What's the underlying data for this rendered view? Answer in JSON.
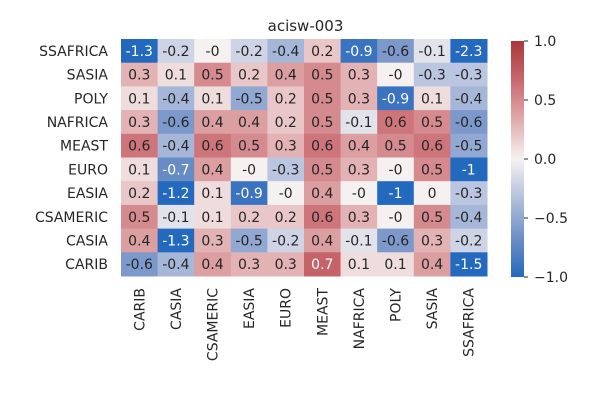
{
  "chart_data": {
    "type": "heatmap",
    "title": "acisw-003",
    "xlabel": "",
    "ylabel": "",
    "x_categories": [
      "CARIB",
      "CASIA",
      "CSAMERIC",
      "EASIA",
      "EURO",
      "MEAST",
      "NAFRICA",
      "POLY",
      "SASIA",
      "SSAFRICA"
    ],
    "y_categories": [
      "SSAFRICA",
      "SASIA",
      "POLY",
      "NAFRICA",
      "MEAST",
      "EURO",
      "EASIA",
      "CSAMERIC",
      "CASIA",
      "CARIB"
    ],
    "values": [
      [
        -1.3,
        -0.2,
        0,
        -0.2,
        -0.4,
        0.2,
        -0.9,
        -0.6,
        -0.1,
        -2.3
      ],
      [
        0.3,
        0.1,
        0.5,
        0.2,
        0.4,
        0.5,
        0.3,
        0,
        -0.3,
        -0.3
      ],
      [
        0.1,
        -0.4,
        0.1,
        -0.5,
        0.2,
        0.5,
        0.3,
        -0.9,
        0.1,
        -0.4
      ],
      [
        0.3,
        -0.6,
        0.4,
        0.4,
        0.2,
        0.5,
        -0.1,
        0.6,
        0.5,
        -0.6
      ],
      [
        0.6,
        -0.4,
        0.6,
        0.5,
        0.3,
        0.6,
        0.4,
        0.5,
        0.6,
        -0.5
      ],
      [
        0.1,
        -0.7,
        0.4,
        0,
        -0.3,
        0.5,
        0.3,
        0,
        0.5,
        -1
      ],
      [
        0.2,
        -1.2,
        0.1,
        -0.9,
        0,
        0.4,
        0,
        -1,
        0,
        -0.3
      ],
      [
        0.5,
        -0.1,
        0.1,
        0.2,
        0.2,
        0.6,
        0.3,
        0,
        0.5,
        -0.4
      ],
      [
        0.4,
        -1.3,
        0.3,
        -0.5,
        -0.2,
        0.4,
        -0.1,
        -0.6,
        0.3,
        -0.2
      ],
      [
        -0.6,
        -0.4,
        0.4,
        0.3,
        0.3,
        0.7,
        0.1,
        0.1,
        0.4,
        -1.5
      ]
    ],
    "cell_labels": [
      [
        "-1.3",
        "-0.2",
        "-0",
        "-0.2",
        "-0.4",
        "0.2",
        "-0.9",
        "-0.6",
        "-0.1",
        "-2.3"
      ],
      [
        "0.3",
        "0.1",
        "0.5",
        "0.2",
        "0.4",
        "0.5",
        "0.3",
        "-0",
        "-0.3",
        "-0.3"
      ],
      [
        "0.1",
        "-0.4",
        "0.1",
        "-0.5",
        "0.2",
        "0.5",
        "0.3",
        "-0.9",
        "0.1",
        "-0.4"
      ],
      [
        "0.3",
        "-0.6",
        "0.4",
        "0.4",
        "0.2",
        "0.5",
        "-0.1",
        "0.6",
        "0.5",
        "-0.6"
      ],
      [
        "0.6",
        "-0.4",
        "0.6",
        "0.5",
        "0.3",
        "0.6",
        "0.4",
        "0.5",
        "0.6",
        "-0.5"
      ],
      [
        "0.1",
        "-0.7",
        "0.4",
        "-0",
        "-0.3",
        "0.5",
        "0.3",
        "-0",
        "0.5",
        "-1"
      ],
      [
        "0.2",
        "-1.2",
        "0.1",
        "-0.9",
        "-0",
        "0.4",
        "-0",
        "-1",
        "0",
        "-0.3"
      ],
      [
        "0.5",
        "-0.1",
        "0.1",
        "0.2",
        "0.2",
        "0.6",
        "0.3",
        "-0",
        "0.5",
        "-0.4"
      ],
      [
        "0.4",
        "-1.3",
        "0.3",
        "-0.5",
        "-0.2",
        "0.4",
        "-0.1",
        "-0.6",
        "0.3",
        "-0.2"
      ],
      [
        "-0.6",
        "-0.4",
        "0.4",
        "0.3",
        "0.3",
        "0.7",
        "0.1",
        "0.1",
        "0.4",
        "-1.5"
      ]
    ],
    "colorbar": {
      "vmin": -1.0,
      "vmax": 1.0,
      "ticks": [
        -1.0,
        -0.5,
        0.0,
        0.5,
        1.0
      ],
      "tick_labels": [
        "−1.0",
        "−0.5",
        "0.0",
        "0.5",
        "1.0"
      ]
    },
    "colormap": {
      "name": "vlag",
      "stops": [
        "#2369bd",
        "#6f8fc6",
        "#b3c0dd",
        "#f6f1f1",
        "#e0abae",
        "#c8686e",
        "#a9373b"
      ]
    },
    "grid": false,
    "legend": "colorbar-right"
  }
}
